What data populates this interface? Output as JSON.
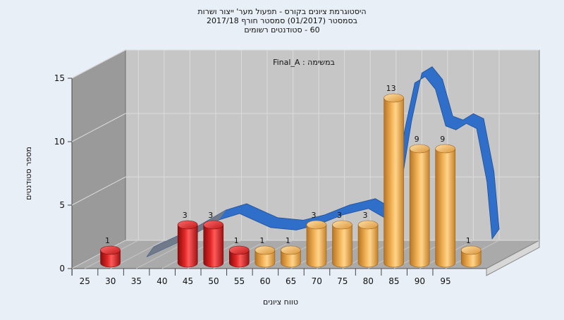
{
  "chart_data": {
    "type": "bar",
    "title_lines": [
      "היסטוגרמת ציונים בקורס - תפעול מער' ייצור ושרות",
      "בסמסטר  (01/2017)  סמסטר חורף 2017/18",
      "60 - סטודנטים רשומים"
    ],
    "inner_label": "במשימה : Final_A",
    "xlabel": "טווח ציונים",
    "ylabel": "מספר סטודנטים",
    "ylim": [
      0,
      15
    ],
    "yticks": [
      0,
      5,
      10,
      15
    ],
    "xticks": [
      25,
      30,
      35,
      40,
      45,
      50,
      55,
      60,
      65,
      70,
      75,
      80,
      85,
      90,
      95
    ],
    "grid": true,
    "series": [
      {
        "type": "bar",
        "x": [
          27.5,
          42.5,
          47.5,
          52.5,
          57.5,
          62.5,
          67.5,
          72.5,
          77.5,
          82.5,
          87.5,
          92.5,
          97.5
        ],
        "values": [
          1,
          3,
          3,
          1,
          1,
          1,
          3,
          3,
          3,
          13,
          9,
          9,
          1
        ],
        "colors": [
          "#dd1f1f",
          "#dd1f1f",
          "#dd1f1f",
          "#dd1f1f",
          "#f0b050",
          "#f0b050",
          "#f0b050",
          "#f0b050",
          "#f0b050",
          "#f0b050",
          "#f0b050",
          "#f0b050",
          "#f0b050"
        ]
      },
      {
        "type": "area",
        "x": [
          32,
          40,
          46,
          50,
          56,
          61,
          65,
          70,
          75,
          78,
          80,
          82,
          84,
          86,
          88,
          90,
          92,
          94,
          96,
          98,
          99
        ],
        "values": [
          0.1,
          1.6,
          3,
          3.5,
          2.4,
          2.2,
          2.6,
          3.4,
          3.9,
          3.2,
          5,
          10,
          13.8,
          14.3,
          13.3,
          10.4,
          10.1,
          10.6,
          10.2,
          6,
          1.5
        ]
      }
    ],
    "colors": {
      "bar_fail": "#dd1f1f",
      "bar_pass": "#f0b050",
      "curve": "#2f6fc9",
      "wall_back": "#c3c3c3",
      "wall_left": "#9c9c9c",
      "floor": "#a8a8a8"
    }
  }
}
